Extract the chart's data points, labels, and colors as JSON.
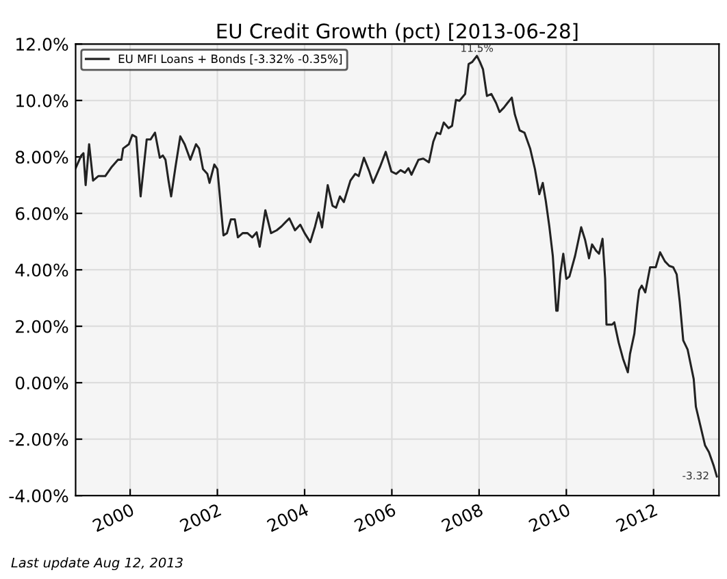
{
  "chart_data": {
    "type": "line",
    "title": "EU Credit Growth (pct) [2013-06-28]",
    "x": [
      1998.75,
      1998.88,
      1998.93,
      1998.98,
      1999.06,
      1999.15,
      1999.27,
      1999.43,
      1999.58,
      1999.72,
      1999.8,
      1999.84,
      1999.97,
      2000.05,
      2000.14,
      2000.24,
      2000.38,
      2000.47,
      2000.57,
      2000.68,
      2000.75,
      2000.81,
      2000.88,
      2000.94,
      2001.04,
      2001.15,
      2001.25,
      2001.38,
      2001.51,
      2001.58,
      2001.67,
      2001.77,
      2001.82,
      2001.93,
      2002.0,
      2002.14,
      2002.22,
      2002.31,
      2002.4,
      2002.47,
      2002.58,
      2002.69,
      2002.8,
      2002.9,
      2002.97,
      2003.1,
      2003.23,
      2003.36,
      2003.47,
      2003.57,
      2003.65,
      2003.78,
      2003.9,
      2004.0,
      2004.13,
      2004.24,
      2004.32,
      2004.4,
      2004.53,
      2004.64,
      2004.72,
      2004.81,
      2004.9,
      2005.05,
      2005.16,
      2005.24,
      2005.36,
      2005.48,
      2005.57,
      2005.73,
      2005.86,
      2005.99,
      2006.1,
      2006.2,
      2006.3,
      2006.38,
      2006.45,
      2006.61,
      2006.72,
      2006.85,
      2006.95,
      2007.03,
      2007.11,
      2007.19,
      2007.3,
      2007.38,
      2007.47,
      2007.55,
      2007.68,
      2007.76,
      2007.84,
      2007.95,
      2008.02,
      2008.09,
      2008.18,
      2008.28,
      2008.39,
      2008.47,
      2008.57,
      2008.65,
      2008.75,
      2008.82,
      2008.93,
      2009.04,
      2009.17,
      2009.28,
      2009.38,
      2009.46,
      2009.53,
      2009.61,
      2009.69,
      2009.77,
      2009.8,
      2009.86,
      2009.93,
      2010.0,
      2010.07,
      2010.2,
      2010.34,
      2010.43,
      2010.52,
      2010.59,
      2010.68,
      2010.75,
      2010.83,
      2010.89,
      2010.92,
      2011.05,
      2011.1,
      2011.2,
      2011.3,
      2011.41,
      2011.46,
      2011.56,
      2011.63,
      2011.67,
      2011.73,
      2011.81,
      2011.92,
      2012.05,
      2012.15,
      2012.26,
      2012.36,
      2012.45,
      2012.53,
      2012.6,
      2012.68,
      2012.78,
      2012.92,
      2012.97,
      2013.07,
      2013.18,
      2013.27,
      2013.38,
      2013.45
    ],
    "series": [
      {
        "name": "EU MFI Loans + Bonds [-3.32% -0.35%]",
        "color": "#222222",
        "values": [
          7.6,
          8.05,
          8.13,
          7.0,
          8.45,
          7.16,
          7.32,
          7.32,
          7.65,
          7.9,
          7.9,
          8.3,
          8.45,
          8.78,
          8.7,
          6.6,
          8.62,
          8.62,
          8.86,
          7.97,
          8.05,
          7.9,
          7.16,
          6.6,
          7.65,
          8.73,
          8.45,
          7.9,
          8.45,
          8.3,
          7.57,
          7.4,
          7.08,
          7.73,
          7.57,
          5.22,
          5.3,
          5.79,
          5.79,
          5.15,
          5.3,
          5.3,
          5.15,
          5.33,
          4.82,
          6.11,
          5.3,
          5.4,
          5.54,
          5.7,
          5.82,
          5.4,
          5.6,
          5.3,
          4.98,
          5.54,
          6.03,
          5.5,
          7.0,
          6.27,
          6.2,
          6.6,
          6.4,
          7.16,
          7.4,
          7.32,
          7.97,
          7.5,
          7.08,
          7.65,
          8.18,
          7.48,
          7.4,
          7.53,
          7.44,
          7.6,
          7.37,
          7.9,
          7.94,
          7.81,
          8.54,
          8.86,
          8.81,
          9.22,
          9.02,
          9.1,
          10.02,
          9.99,
          10.23,
          11.29,
          11.36,
          11.58,
          11.36,
          11.1,
          10.16,
          10.23,
          9.91,
          9.59,
          9.75,
          9.91,
          10.1,
          9.5,
          8.94,
          8.86,
          8.3,
          7.57,
          6.68,
          7.08,
          6.43,
          5.54,
          4.49,
          2.55,
          2.55,
          3.84,
          4.57,
          3.68,
          3.76,
          4.49,
          5.51,
          5.06,
          4.41,
          4.9,
          4.68,
          4.57,
          5.1,
          3.68,
          2.06,
          2.06,
          2.14,
          1.42,
          0.85,
          0.37,
          1.02,
          1.74,
          2.79,
          3.28,
          3.44,
          3.2,
          4.09,
          4.09,
          4.62,
          4.3,
          4.14,
          4.09,
          3.84,
          2.87,
          1.5,
          1.18,
          0.13,
          -0.85,
          -1.5,
          -2.22,
          -2.46,
          -2.95,
          -3.32
        ]
      }
    ],
    "xlim": [
      1998.75,
      2013.5
    ],
    "xticks": [
      2000,
      2002,
      2004,
      2006,
      2008,
      2010,
      2012
    ],
    "ylim": [
      -4,
      12
    ],
    "yticks": [
      {
        "value": -4,
        "label": "-4.00%"
      },
      {
        "value": -2,
        "label": "-2.00%"
      },
      {
        "value": 0,
        "label": "0.00%"
      },
      {
        "value": 2,
        "label": "2.00%"
      },
      {
        "value": 4,
        "label": "4.00%"
      },
      {
        "value": 6,
        "label": "6.00%"
      },
      {
        "value": 8,
        "label": "8.00%"
      },
      {
        "value": 10,
        "label": "10.0%"
      },
      {
        "value": 12,
        "label": "12.0%"
      }
    ],
    "annotations": [
      {
        "text": "11.5%",
        "x": 2007.95,
        "y": 11.58
      },
      {
        "text": "-3.32",
        "x": 2013.45,
        "y": -3.32
      },
      "Last update Aug 12, 2013"
    ],
    "grid": true,
    "legend": "top left"
  }
}
